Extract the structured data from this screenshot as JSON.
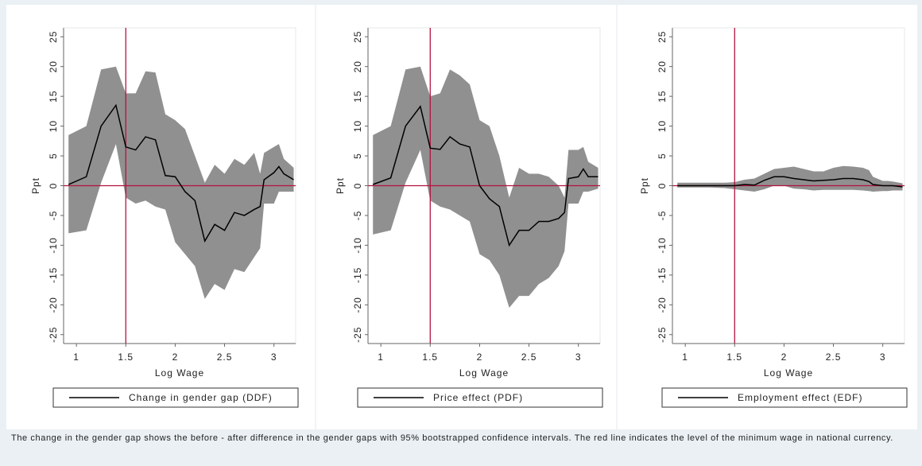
{
  "chart_data": [
    {
      "type": "band-line",
      "xlabel": "Log Wage",
      "ylabel": "Ppt",
      "xlim": [
        0.87,
        3.22
      ],
      "xticks": [
        1,
        1.5,
        2,
        2.5,
        3
      ],
      "ylim": [
        -26.5,
        26.5
      ],
      "yticks": [
        -25,
        -20,
        -15,
        -10,
        -5,
        0,
        5,
        10,
        15,
        20,
        25
      ],
      "vline": 1.5,
      "hline": 0,
      "ref_color": "#b5123e",
      "band_color": "#909090",
      "x": [
        0.92,
        1.1,
        1.25,
        1.4,
        1.5,
        1.6,
        1.7,
        1.8,
        1.9,
        2.0,
        2.1,
        2.2,
        2.3,
        2.4,
        2.5,
        2.6,
        2.7,
        2.8,
        2.86,
        2.9,
        3.0,
        3.05,
        3.1,
        3.2
      ],
      "series": [
        {
          "name": "Change in gender gap (DDF)",
          "color": "#000000",
          "values": [
            0.2,
            1.5,
            10,
            13.5,
            6.5,
            6,
            8.2,
            7.7,
            1.7,
            1.5,
            -1,
            -2.5,
            -9.3,
            -6.5,
            -7.5,
            -4.5,
            -5,
            -4,
            -3.5,
            1,
            2.2,
            3.2,
            2,
            1
          ],
          "upper": [
            8.5,
            10,
            19.5,
            20,
            15.5,
            15.5,
            19.2,
            19,
            12,
            11,
            9.5,
            5,
            0.5,
            3.5,
            2,
            4.5,
            3.5,
            5.5,
            2,
            5.5,
            6.5,
            7,
            4.5,
            3
          ],
          "lower": [
            -8,
            -7.5,
            0.5,
            7,
            -2,
            -3,
            -2.5,
            -3.5,
            -4,
            -9.5,
            -11.5,
            -13.5,
            -19,
            -16.5,
            -17.5,
            -14,
            -14.5,
            -12,
            -10.5,
            -3,
            -3,
            -1,
            -1,
            -1
          ]
        }
      ]
    },
    {
      "type": "band-line",
      "xlabel": "Log Wage",
      "ylabel": "Ppt",
      "xlim": [
        0.87,
        3.22
      ],
      "xticks": [
        1,
        1.5,
        2,
        2.5,
        3
      ],
      "ylim": [
        -26.5,
        26.5
      ],
      "yticks": [
        -25,
        -20,
        -15,
        -10,
        -5,
        0,
        5,
        10,
        15,
        20,
        25
      ],
      "vline": 1.5,
      "hline": 0,
      "ref_color": "#b5123e",
      "band_color": "#909090",
      "x": [
        0.92,
        1.1,
        1.25,
        1.4,
        1.5,
        1.6,
        1.7,
        1.8,
        1.9,
        2.0,
        2.1,
        2.2,
        2.3,
        2.4,
        2.5,
        2.6,
        2.7,
        2.8,
        2.86,
        2.9,
        3.0,
        3.05,
        3.1,
        3.2
      ],
      "series": [
        {
          "name": "Price effect (PDF)",
          "color": "#000000",
          "values": [
            0.2,
            1.3,
            10,
            13.3,
            6.3,
            6.1,
            8.2,
            7,
            6.5,
            0,
            -2.2,
            -3.5,
            -10,
            -7.5,
            -7.5,
            -6,
            -6,
            -5.5,
            -4.5,
            1.2,
            1.5,
            2.8,
            1.5,
            1.5
          ],
          "upper": [
            8.5,
            10,
            19.5,
            20,
            15,
            15.5,
            19.5,
            18.5,
            17,
            11,
            10,
            5,
            -2,
            3,
            2,
            2,
            1.5,
            0,
            -2,
            6,
            6,
            6.5,
            4,
            3
          ],
          "lower": [
            -8.2,
            -7.5,
            0.5,
            6,
            -2.5,
            -3.5,
            -4,
            -5,
            -6,
            -11.5,
            -12.5,
            -15,
            -20.5,
            -18.5,
            -18.5,
            -16.5,
            -15.5,
            -13.5,
            -11,
            -3,
            -3,
            -1,
            -1,
            -0.5
          ]
        }
      ]
    },
    {
      "type": "band-line",
      "xlabel": "Log Wage",
      "ylabel": "Ppt",
      "xlim": [
        0.87,
        3.22
      ],
      "xticks": [
        1,
        1.5,
        2,
        2.5,
        3
      ],
      "ylim": [
        -26.5,
        26.5
      ],
      "yticks": [
        -25,
        -20,
        -15,
        -10,
        -5,
        0,
        5,
        10,
        15,
        20,
        25
      ],
      "vline": 1.5,
      "hline": 0,
      "ref_color": "#b5123e",
      "band_color": "#909090",
      "x": [
        0.92,
        1.1,
        1.25,
        1.4,
        1.5,
        1.6,
        1.7,
        1.8,
        1.9,
        2.0,
        2.1,
        2.2,
        2.3,
        2.4,
        2.5,
        2.6,
        2.7,
        2.8,
        2.86,
        2.9,
        3.0,
        3.05,
        3.1,
        3.2
      ],
      "series": [
        {
          "name": "Employment effect (EDF)",
          "color": "#000000",
          "values": [
            0,
            0,
            0,
            0,
            0,
            0.2,
            0.1,
            0.9,
            1.5,
            1.5,
            1.2,
            1,
            0.8,
            0.9,
            1,
            1.2,
            1.2,
            1,
            0.7,
            0.2,
            0,
            0,
            0,
            -0.2
          ],
          "upper": [
            0.5,
            0.5,
            0.5,
            0.5,
            0.6,
            1,
            1.2,
            2,
            2.8,
            3,
            3.2,
            2.8,
            2.4,
            2.4,
            3,
            3.3,
            3.2,
            3,
            2.6,
            1.5,
            0.8,
            0.8,
            0.7,
            0.4
          ],
          "lower": [
            -0.3,
            -0.3,
            -0.3,
            -0.4,
            -0.6,
            -0.8,
            -1,
            -0.6,
            0,
            0,
            -0.5,
            -0.6,
            -0.8,
            -0.7,
            -0.7,
            -0.7,
            -0.7,
            -0.8,
            -0.9,
            -1,
            -0.9,
            -0.9,
            -0.8,
            -0.8
          ]
        }
      ]
    }
  ],
  "caption": "The change in the gender gap shows the before - after difference in the gender gaps with 95% bootstrapped confidence intervals. The red line indicates the level of the minimum wage in national currency."
}
